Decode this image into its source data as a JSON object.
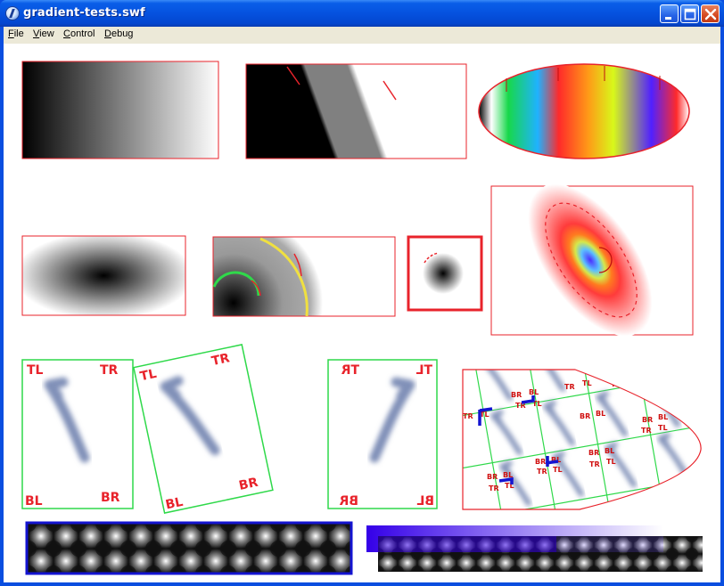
{
  "window": {
    "title": "gradient-tests.swf"
  },
  "menu": [
    {
      "label": "File"
    },
    {
      "label": "View"
    },
    {
      "label": "Control"
    },
    {
      "label": "Debug"
    }
  ],
  "swatches": {
    "tl": "TL",
    "tr": "TR",
    "bl": "BL",
    "br": "BR"
  },
  "icons": {
    "app": "flash-player-icon",
    "minimize": "minimize-icon",
    "maximize": "maximize-icon",
    "close": "close-icon"
  },
  "colors": {
    "titlebar": "#0552df",
    "frame_red": "#e8232b",
    "frame_green": "#2fd94a",
    "frame_blue": "#1414d0"
  }
}
